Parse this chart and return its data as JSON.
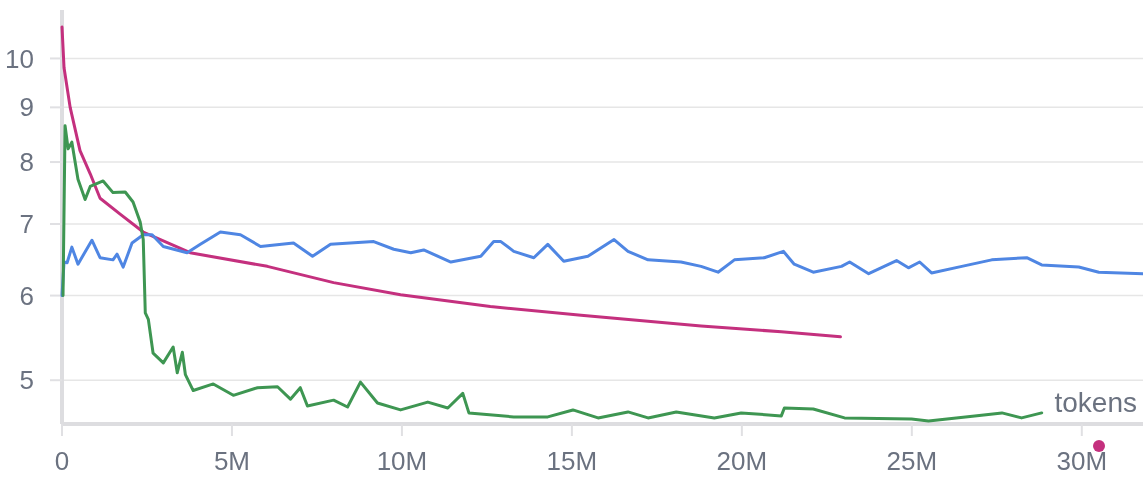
{
  "chart_data": {
    "type": "line",
    "xlabel": "tokens",
    "log": true,
    "grid": "y",
    "marker": "none",
    "line_style": "solid",
    "xlim": [
      0,
      31.8
    ],
    "xticks": [
      0,
      {
        "value": 5,
        "label": "5M"
      },
      {
        "value": 10,
        "label": "10M"
      },
      {
        "value": 15,
        "label": "15M"
      },
      {
        "value": 20,
        "label": "20M"
      },
      {
        "value": 25,
        "label": "25M"
      },
      {
        "value": 30,
        "label": "30M"
      }
    ],
    "ylim": [
      4.55,
      11.1
    ],
    "yticks": [
      5,
      6,
      7,
      8,
      9,
      10
    ],
    "series": [
      {
        "color": "#c4307e",
        "x": [
          0,
          0.06,
          0.24,
          0.53,
          0.83,
          1.12,
          1.71,
          2.39,
          3.77,
          6.04,
          7.99,
          9.96,
          12.6,
          15.27,
          18.8,
          21.16,
          22.9
        ],
        "values": [
          10.7,
          9.8,
          9.0,
          8.2,
          7.8,
          7.4,
          7.15,
          6.88,
          6.58,
          6.39,
          6.17,
          6.01,
          5.86,
          5.75,
          5.62,
          5.55,
          5.49
        ]
      },
      {
        "color": "#4f86e3",
        "x": [
          0,
          0.06,
          0.15,
          0.29,
          0.47,
          0.88,
          1.12,
          1.5,
          1.62,
          1.8,
          2.06,
          2.39,
          2.65,
          2.98,
          3.68,
          4.07,
          4.66,
          5.25,
          5.84,
          6.81,
          7.37,
          7.9,
          9.17,
          9.76,
          10.26,
          10.64,
          11.44,
          12.32,
          12.7,
          12.91,
          13.29,
          13.88,
          14.29,
          14.76,
          15.47,
          16.24,
          16.65,
          17.24,
          18.21,
          18.8,
          19.3,
          19.78,
          20.66,
          21.22,
          21.54,
          22.1,
          22.93,
          23.17,
          23.73,
          24.55,
          24.9,
          25.23,
          25.58,
          26.47,
          27.35,
          28.38,
          28.82,
          29.91,
          30.5,
          31.8
        ],
        "values": [
          6.0,
          6.45,
          6.44,
          6.66,
          6.42,
          6.76,
          6.51,
          6.48,
          6.56,
          6.38,
          6.72,
          6.84,
          6.84,
          6.67,
          6.58,
          6.7,
          6.88,
          6.84,
          6.67,
          6.72,
          6.53,
          6.7,
          6.74,
          6.63,
          6.58,
          6.62,
          6.45,
          6.53,
          6.74,
          6.74,
          6.6,
          6.51,
          6.7,
          6.46,
          6.53,
          6.77,
          6.6,
          6.48,
          6.45,
          6.39,
          6.31,
          6.48,
          6.51,
          6.6,
          6.42,
          6.31,
          6.39,
          6.45,
          6.29,
          6.47,
          6.37,
          6.45,
          6.3,
          6.39,
          6.48,
          6.51,
          6.41,
          6.38,
          6.31,
          6.29
        ]
      },
      {
        "color": "#3e9652",
        "x": [
          0.03,
          0.09,
          0.18,
          0.29,
          0.47,
          0.68,
          0.83,
          1.21,
          1.5,
          1.86,
          2.09,
          2.3,
          2.39,
          2.45,
          2.54,
          2.68,
          2.98,
          3.27,
          3.39,
          3.54,
          3.63,
          3.86,
          4.45,
          5.04,
          5.75,
          6.34,
          6.72,
          7.01,
          7.22,
          7.99,
          8.4,
          8.78,
          9.28,
          9.96,
          10.76,
          11.35,
          11.79,
          11.97,
          13.29,
          14.29,
          15.03,
          15.77,
          16.65,
          17.24,
          18.07,
          19.19,
          19.98,
          21.16,
          21.25,
          22.1,
          23.02,
          24.99,
          25.49,
          26.85,
          27.65,
          28.23,
          28.82
        ],
        "values": [
          6.0,
          8.65,
          8.23,
          8.35,
          7.71,
          7.38,
          7.59,
          7.68,
          7.49,
          7.5,
          7.34,
          7.03,
          6.77,
          5.78,
          5.7,
          5.3,
          5.19,
          5.37,
          5.08,
          5.31,
          5.06,
          4.89,
          4.96,
          4.84,
          4.92,
          4.93,
          4.8,
          4.92,
          4.73,
          4.79,
          4.72,
          4.98,
          4.76,
          4.69,
          4.77,
          4.71,
          4.86,
          4.66,
          4.62,
          4.62,
          4.69,
          4.61,
          4.67,
          4.61,
          4.67,
          4.61,
          4.66,
          4.63,
          4.71,
          4.7,
          4.61,
          4.6,
          4.58,
          4.63,
          4.66,
          4.61,
          4.66
        ]
      }
    ]
  }
}
